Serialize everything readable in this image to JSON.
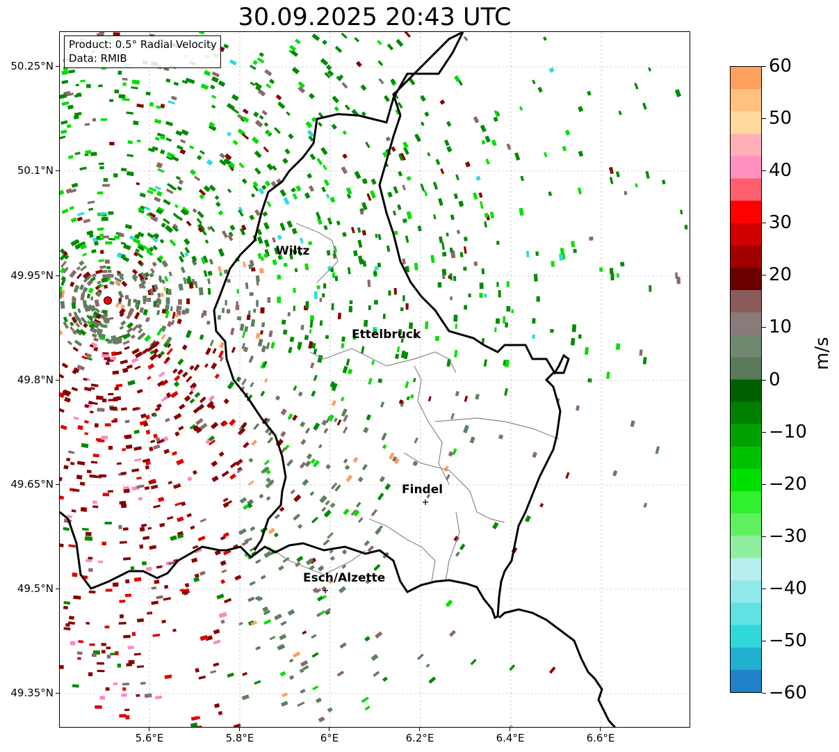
{
  "title": "30.09.2025 20:43 UTC",
  "info": {
    "product": "Product: 0.5° Radial Velocity",
    "source": "Data: RMIB"
  },
  "lat_labels": [
    "50.25°N",
    "50.1°N",
    "49.95°N",
    "49.8°N",
    "49.65°N",
    "49.5°N",
    "49.35°N"
  ],
  "lon_labels": [
    "5.6°E",
    "5.8°E",
    "6°E",
    "6.2°E",
    "6.4°E",
    "6.6°E"
  ],
  "cities": [
    {
      "name": "Wiltz"
    },
    {
      "name": "Ettelbruck"
    },
    {
      "name": "Findel"
    },
    {
      "name": "Esch/Alzette"
    }
  ],
  "colorbar": {
    "unit": "m/s",
    "range": [
      -60,
      60
    ],
    "tick_labels": [
      "60",
      "50",
      "40",
      "30",
      "20",
      "10",
      "0",
      "−10",
      "−20",
      "−30",
      "−40",
      "−50",
      "−60"
    ]
  },
  "colors": {
    "inbound_strong": "#00e000",
    "inbound": "#008a00",
    "near_zero_green": "#5f7f5f",
    "near_zero_brown": "#8a6a6a",
    "outbound": "#880000",
    "outbound_strong": "#e00000",
    "pink": "#ff88c0",
    "cyan": "#30dcdc",
    "orange": "#ffa060",
    "border": "#000000",
    "canton_border": "#888888",
    "radar_site": "#ff0000"
  },
  "colorbar_stops": [
    "#2080c8",
    "#20b0d0",
    "#30d8dc",
    "#60e2e2",
    "#90e8e8",
    "#b8eeee",
    "#90eea0",
    "#60f060",
    "#30f030",
    "#00e000",
    "#00c000",
    "#00a000",
    "#008000",
    "#006000",
    "#5a7a5a",
    "#708870",
    "#8a7a7a",
    "#8a5a5a",
    "#6a0000",
    "#a00000",
    "#d00000",
    "#ff0000",
    "#ff6070",
    "#ff90c0",
    "#ffb0b8",
    "#ffd8a0",
    "#ffc080",
    "#ffa060"
  ]
}
